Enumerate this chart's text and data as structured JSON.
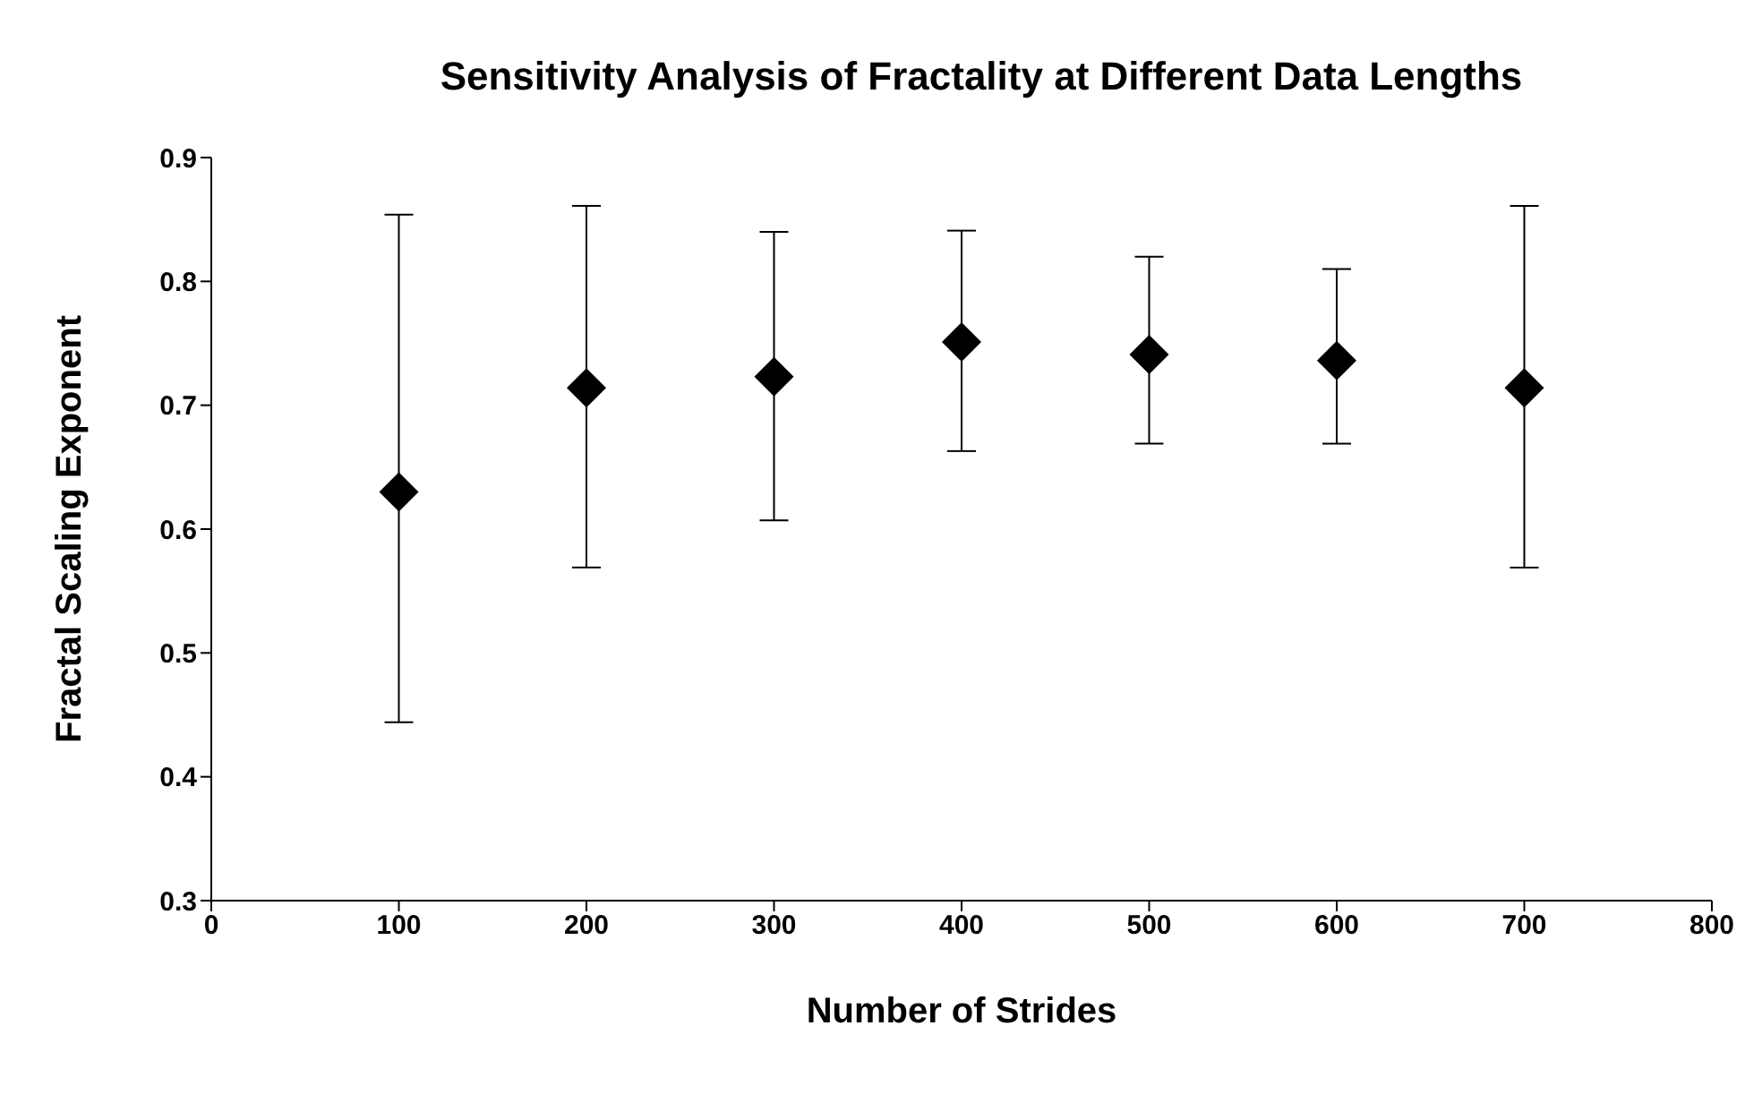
{
  "chart_data": {
    "type": "scatter",
    "title": "Sensitivity Analysis of Fractality at Different Data Lengths",
    "xlabel": "Number of Strides",
    "ylabel": "Fractal Scaling Exponent",
    "x": [
      100,
      200,
      300,
      400,
      500,
      600,
      700
    ],
    "series": [
      {
        "color": "#000000",
        "values": [
          0.63,
          0.714,
          0.723,
          0.751,
          0.741,
          0.736,
          0.714
        ],
        "errors": [
          [
            0.444,
            0.854
          ],
          [
            0.569,
            0.861
          ],
          [
            0.607,
            0.84
          ],
          [
            0.663,
            0.841
          ],
          [
            0.669,
            0.82
          ],
          [
            0.669,
            0.81
          ],
          [
            0.569,
            0.861
          ]
        ]
      }
    ],
    "xlim": [
      0,
      800
    ],
    "xticks": [
      0,
      100,
      200,
      300,
      400,
      500,
      600,
      700,
      800
    ],
    "ylim": [
      0.3,
      0.9
    ],
    "yticks": [
      0.3,
      0.4,
      0.5,
      0.6,
      0.7,
      0.8,
      0.9
    ],
    "grid": false,
    "marker": "diamond"
  }
}
